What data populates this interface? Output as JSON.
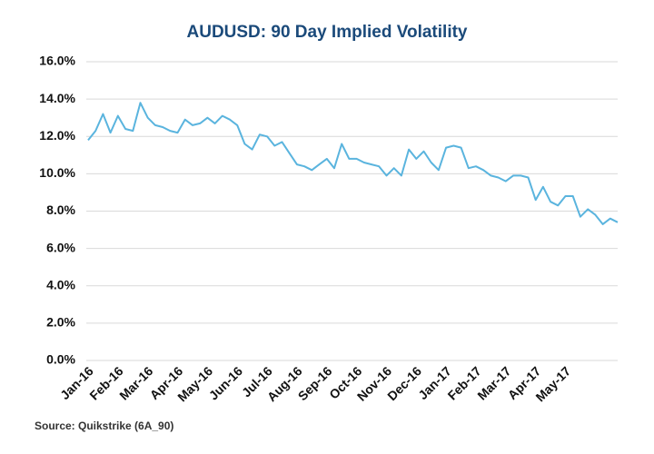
{
  "chart_data": {
    "type": "line",
    "title": "AUDUSD: 90 Day Implied Volatility",
    "source": "Source: Quikstrike (6A_90)",
    "categories": [
      "Jan-16",
      null,
      null,
      null,
      "Feb-16",
      null,
      null,
      null,
      "Mar-16",
      null,
      null,
      null,
      "Apr-16",
      null,
      null,
      null,
      "May-16",
      null,
      null,
      null,
      "Jun-16",
      null,
      null,
      null,
      "Jul-16",
      null,
      null,
      null,
      "Aug-16",
      null,
      null,
      null,
      "Sep-16",
      null,
      null,
      null,
      "Oct-16",
      null,
      null,
      null,
      "Nov-16",
      null,
      null,
      null,
      "Dec-16",
      null,
      null,
      null,
      "Jan-17",
      null,
      null,
      null,
      "Feb-17",
      null,
      null,
      null,
      "Mar-17",
      null,
      null,
      null,
      "Apr-17",
      null,
      null,
      null,
      "May-17",
      null,
      null,
      null,
      null,
      null,
      null,
      null
    ],
    "series": [
      {
        "name": "AUDUSD 90 Day Implied Volatility",
        "color": "#5ab4de",
        "values": [
          11.8,
          12.3,
          13.2,
          12.2,
          13.1,
          12.4,
          12.3,
          13.8,
          13.0,
          12.6,
          12.5,
          12.3,
          12.2,
          12.9,
          12.6,
          12.7,
          13.0,
          12.7,
          13.1,
          12.9,
          12.6,
          11.6,
          11.3,
          12.1,
          12.0,
          11.5,
          11.7,
          11.1,
          10.5,
          10.4,
          10.2,
          10.5,
          10.8,
          10.3,
          11.6,
          10.8,
          10.8,
          10.6,
          10.5,
          10.4,
          9.9,
          10.3,
          9.9,
          11.3,
          10.8,
          11.2,
          10.6,
          10.2,
          11.4,
          11.5,
          11.4,
          10.3,
          10.4,
          10.2,
          9.9,
          9.8,
          9.6,
          9.9,
          9.9,
          9.8,
          8.6,
          9.3,
          8.5,
          8.3,
          8.8,
          8.8,
          7.7,
          8.1,
          7.8,
          7.3,
          7.6,
          7.4
        ]
      }
    ],
    "ylim": [
      0,
      16
    ],
    "yticks": [
      {
        "value": 0,
        "label": "0.0%"
      },
      {
        "value": 2,
        "label": "2.0%"
      },
      {
        "value": 4,
        "label": "4.0%"
      },
      {
        "value": 6,
        "label": "6.0%"
      },
      {
        "value": 8,
        "label": "8.0%"
      },
      {
        "value": 10,
        "label": "10.0%"
      },
      {
        "value": 12,
        "label": "12.0%"
      },
      {
        "value": 14,
        "label": "14.0%"
      },
      {
        "value": 16,
        "label": "16.0%"
      }
    ],
    "grid": true
  }
}
